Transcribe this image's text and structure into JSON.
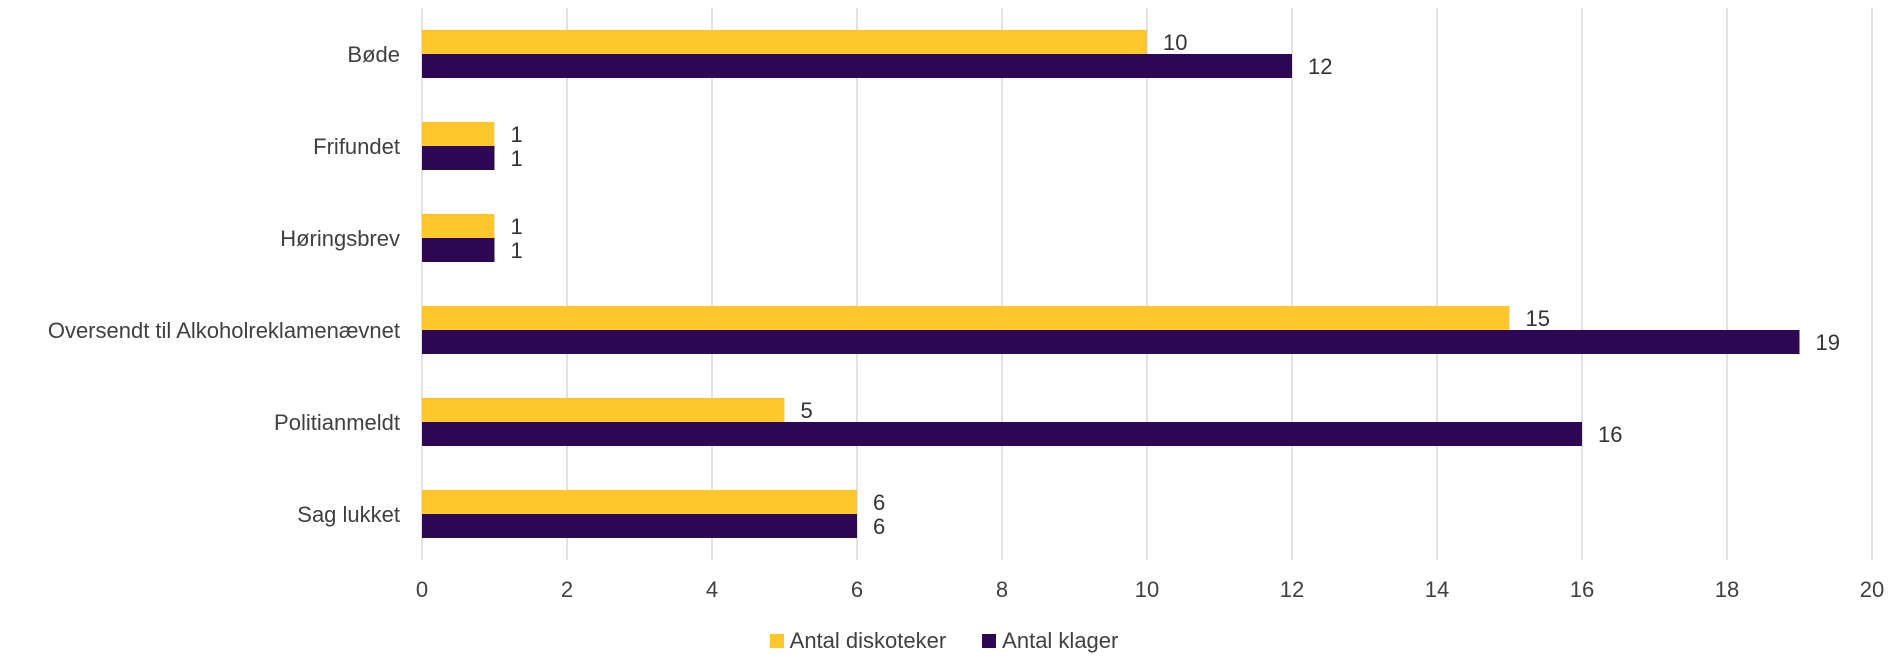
{
  "chart_data": {
    "type": "bar",
    "orientation": "horizontal",
    "categories": [
      "Bøde",
      "Frifundet",
      "Høringsbrev",
      "Oversendt til Alkoholreklamenævnet",
      "Politianmeldt",
      "Sag lukket"
    ],
    "series": [
      {
        "name": "Antal diskoteker",
        "color": "#ffc72c",
        "values": [
          10,
          1,
          1,
          15,
          5,
          6
        ]
      },
      {
        "name": "Antal klager",
        "color": "#2e0854",
        "values": [
          12,
          1,
          1,
          19,
          16,
          6
        ]
      }
    ],
    "xlim": [
      0,
      20
    ],
    "xticks": [
      0,
      2,
      4,
      6,
      8,
      10,
      12,
      14,
      16,
      18,
      20
    ],
    "grid": true,
    "legend_position": "bottom",
    "data_labels": true
  }
}
